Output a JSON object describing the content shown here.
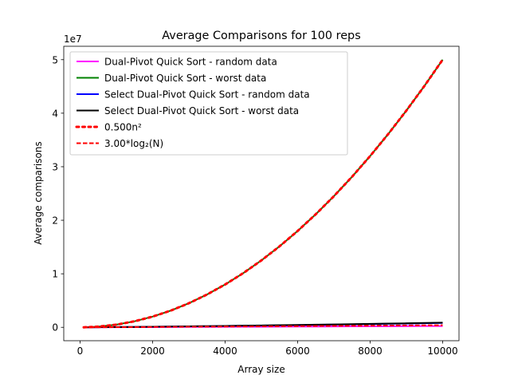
{
  "chart_data": {
    "type": "line",
    "title": "Average Comparisons for 100 reps",
    "xlabel": "Array size",
    "ylabel": "Average comparisons",
    "y_offset_label": "1e7",
    "y_scale": 10000000,
    "xlim": [
      -450,
      10450
    ],
    "ylim": [
      -2500000,
      52500000
    ],
    "xticks": [
      0,
      2000,
      4000,
      6000,
      8000,
      10000
    ],
    "xtick_labels": [
      "0",
      "2000",
      "4000",
      "6000",
      "8000",
      "10000"
    ],
    "yticks": [
      0,
      10000000,
      20000000,
      30000000,
      40000000,
      50000000
    ],
    "ytick_labels": [
      "0",
      "1",
      "2",
      "3",
      "4",
      "5"
    ],
    "grid": false,
    "legend_position": "top-left",
    "x": [
      100,
      500,
      1000,
      1500,
      2000,
      2500,
      3000,
      3500,
      4000,
      4500,
      5000,
      5500,
      6000,
      6500,
      7000,
      7500,
      8000,
      8500,
      9000,
      9500,
      10000
    ],
    "series": [
      {
        "name": "Dual-Pivot Quick Sort - random data",
        "color": "#ff00ff",
        "style": "solid",
        "values": [
          1000,
          8000,
          18000,
          28000,
          40000,
          52000,
          64000,
          76000,
          88000,
          101000,
          114000,
          127000,
          140000,
          153000,
          166000,
          179000,
          193000,
          206000,
          220000,
          233000,
          247000
        ]
      },
      {
        "name": "Dual-Pivot Quick Sort - worst data",
        "color": "#008000",
        "style": "solid",
        "values": [
          5000,
          125000,
          500000,
          1125000,
          2000000,
          3125000,
          4500000,
          6125000,
          8000000,
          10125000,
          12500000,
          15125000,
          18000000,
          21125000,
          24500000,
          28125000,
          32000000,
          36125000,
          40500000,
          45125000,
          50000000
        ]
      },
      {
        "name": "Select Dual-Pivot Quick Sort - random data",
        "color": "#0000ff",
        "style": "solid",
        "values": [
          3000,
          20000,
          45000,
          75000,
          105000,
          140000,
          175000,
          210000,
          250000,
          290000,
          330000,
          375000,
          420000,
          465000,
          510000,
          560000,
          610000,
          660000,
          710000,
          760000,
          810000
        ]
      },
      {
        "name": "Select Dual-Pivot Quick Sort - worst data",
        "color": "#000000",
        "style": "solid",
        "values": [
          3000,
          22000,
          48000,
          80000,
          112000,
          148000,
          185000,
          225000,
          265000,
          308000,
          352000,
          398000,
          445000,
          493000,
          542000,
          593000,
          645000,
          698000,
          752000,
          808000,
          865000
        ]
      },
      {
        "name": "0.500n²",
        "color": "#ff0000",
        "style": "dotted",
        "values": [
          5000,
          125000,
          500000,
          1125000,
          2000000,
          3125000,
          4500000,
          6125000,
          8000000,
          10125000,
          12500000,
          15125000,
          18000000,
          21125000,
          24500000,
          28125000,
          32000000,
          36125000,
          40500000,
          45125000,
          50000000
        ]
      },
      {
        "name": "3.00*log₂(N)",
        "color": "#ff0000",
        "style": "dashed",
        "values": [
          2000,
          13000,
          30000,
          48000,
          66000,
          85000,
          104000,
          123000,
          144000,
          164000,
          184000,
          205000,
          226000,
          248000,
          269000,
          290000,
          311000,
          333000,
          355000,
          377000,
          399000
        ]
      }
    ]
  }
}
